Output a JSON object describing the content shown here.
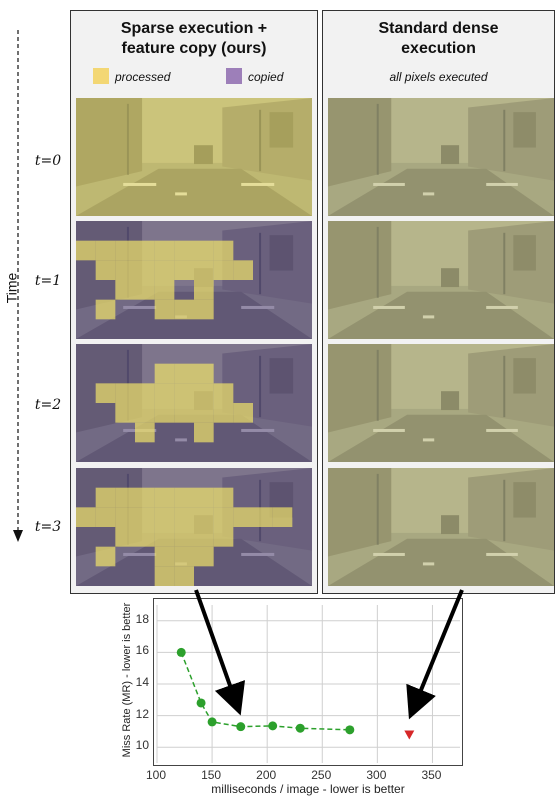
{
  "panels": {
    "left": {
      "title_line1": "Sparse execution +",
      "title_line2": "feature copy (ours)",
      "legend": [
        {
          "label": "processed",
          "color": "#f3d774"
        },
        {
          "label": "copied",
          "color": "#9d7fb9"
        }
      ]
    },
    "right": {
      "title_line1": "Standard  dense",
      "title_line2": "execution",
      "caption": "all pixels executed"
    }
  },
  "time": {
    "axis_label": "Time",
    "steps": [
      "t=0",
      "t=1",
      "t=2",
      "t=3"
    ]
  },
  "colors": {
    "processed_tint": "#f0e36a",
    "copied_tint": "#5d4f8c",
    "dense_tint": "#c9c98a",
    "series_green": "#2ca02c",
    "marker_red": "#d62728"
  },
  "chart_data": {
    "type": "scatter",
    "xlabel": "milliseconds / image - lower is better",
    "ylabel": "Miss Rate (MR) - lower is better",
    "xlim": [
      100,
      375
    ],
    "ylim": [
      9,
      19
    ],
    "xticks": [
      100,
      150,
      200,
      250,
      300,
      350
    ],
    "yticks": [
      10,
      12,
      14,
      16,
      18
    ],
    "grid": true,
    "series": [
      {
        "marker": "circle",
        "color": "#2ca02c",
        "line": "dashed",
        "x": [
          122,
          140,
          150,
          176,
          205,
          230,
          275
        ],
        "y": [
          16.0,
          12.8,
          11.6,
          11.3,
          11.35,
          11.2,
          11.1
        ]
      },
      {
        "marker": "triangle-down",
        "color": "#d62728",
        "line": "none",
        "x": [
          329
        ],
        "y": [
          10.8
        ]
      }
    ]
  }
}
